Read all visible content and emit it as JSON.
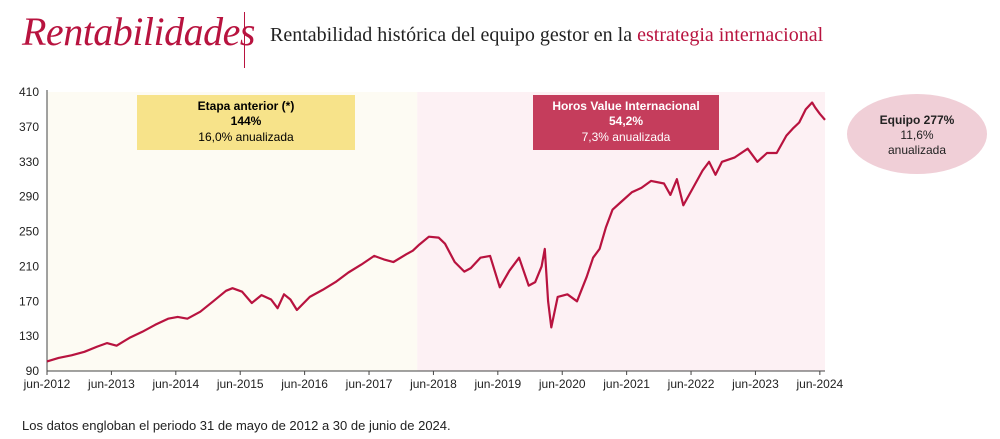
{
  "header": {
    "title": "Rentabilidades",
    "subtitle_prefix": "Rentabilidad histórica del equipo gestor en la ",
    "subtitle_accent": "estrategia internacional"
  },
  "footnote": "Los datos engloban el periodo 31 de mayo de 2012 a 30 de junio de 2024.",
  "colors": {
    "accent": "#b8133f",
    "line": "#b8133f",
    "phase1_bg": "#fdfbf3",
    "phase2_bg": "#fdf1f4",
    "box1": "#f7e38a",
    "box2": "#c53d5c",
    "ellipse": "#f0cfd7"
  },
  "chart_data": {
    "type": "line",
    "title": "",
    "xlabel": "",
    "ylabel": "",
    "ylim": [
      90,
      410
    ],
    "yticks": [
      90,
      130,
      170,
      210,
      250,
      290,
      330,
      370,
      410
    ],
    "xlim": [
      2012.42,
      2024.5
    ],
    "xticks": [
      {
        "x": 2012.42,
        "label": "jun-2012"
      },
      {
        "x": 2013.42,
        "label": "jun-2013"
      },
      {
        "x": 2014.42,
        "label": "jun-2014"
      },
      {
        "x": 2015.42,
        "label": "jun-2015"
      },
      {
        "x": 2016.42,
        "label": "jun-2016"
      },
      {
        "x": 2017.42,
        "label": "jun-2017"
      },
      {
        "x": 2018.42,
        "label": "jun-2018"
      },
      {
        "x": 2019.42,
        "label": "jun-2019"
      },
      {
        "x": 2020.42,
        "label": "jun-2020"
      },
      {
        "x": 2021.42,
        "label": "jun-2021"
      },
      {
        "x": 2022.42,
        "label": "jun-2022"
      },
      {
        "x": 2023.42,
        "label": "jun-2023"
      },
      {
        "x": 2024.42,
        "label": "jun-2024"
      }
    ],
    "phase_split_x": 2018.17,
    "series": [
      {
        "name": "",
        "x": [
          2012.42,
          2012.6,
          2012.8,
          2013.0,
          2013.2,
          2013.35,
          2013.5,
          2013.7,
          2013.9,
          2014.1,
          2014.3,
          2014.45,
          2014.6,
          2014.8,
          2015.0,
          2015.2,
          2015.3,
          2015.45,
          2015.6,
          2015.75,
          2015.9,
          2016.0,
          2016.1,
          2016.2,
          2016.3,
          2016.5,
          2016.7,
          2016.9,
          2017.1,
          2017.3,
          2017.5,
          2017.65,
          2017.8,
          2018.0,
          2018.1,
          2018.2,
          2018.35,
          2018.5,
          2018.6,
          2018.75,
          2018.9,
          2019.0,
          2019.15,
          2019.3,
          2019.45,
          2019.6,
          2019.75,
          2019.9,
          2020.0,
          2020.1,
          2020.15,
          2020.2,
          2020.25,
          2020.35,
          2020.5,
          2020.65,
          2020.8,
          2020.9,
          2021.0,
          2021.1,
          2021.2,
          2021.35,
          2021.5,
          2021.65,
          2021.8,
          2022.0,
          2022.1,
          2022.2,
          2022.3,
          2022.45,
          2022.6,
          2022.7,
          2022.8,
          2022.9,
          2023.1,
          2023.3,
          2023.45,
          2023.6,
          2023.75,
          2023.9,
          2024.0,
          2024.1,
          2024.2,
          2024.3,
          2024.35,
          2024.42,
          2024.5
        ],
        "values": [
          101,
          105,
          108,
          112,
          118,
          122,
          119,
          128,
          135,
          143,
          150,
          152,
          150,
          158,
          170,
          182,
          185,
          181,
          168,
          177,
          172,
          162,
          178,
          172,
          160,
          175,
          183,
          192,
          203,
          212,
          222,
          218,
          215,
          224,
          228,
          235,
          244,
          243,
          236,
          215,
          204,
          208,
          220,
          222,
          186,
          205,
          220,
          188,
          192,
          210,
          230,
          170,
          140,
          175,
          178,
          170,
          198,
          220,
          230,
          255,
          275,
          285,
          295,
          300,
          308,
          305,
          292,
          310,
          280,
          300,
          320,
          330,
          315,
          330,
          335,
          345,
          330,
          340,
          340,
          360,
          368,
          375,
          390,
          398,
          392,
          385,
          378
        ]
      }
    ],
    "annotations": [
      {
        "title": "Etapa anterior (*)",
        "value": "144%",
        "detail": "16,0% anualizada"
      },
      {
        "title": "Horos Value Internacional",
        "value": "54,2%",
        "detail": "7,3% anualizada"
      }
    ],
    "team_badge": {
      "title": "Equipo 277%",
      "line1": "11,6%",
      "line2": "anualizada"
    }
  }
}
